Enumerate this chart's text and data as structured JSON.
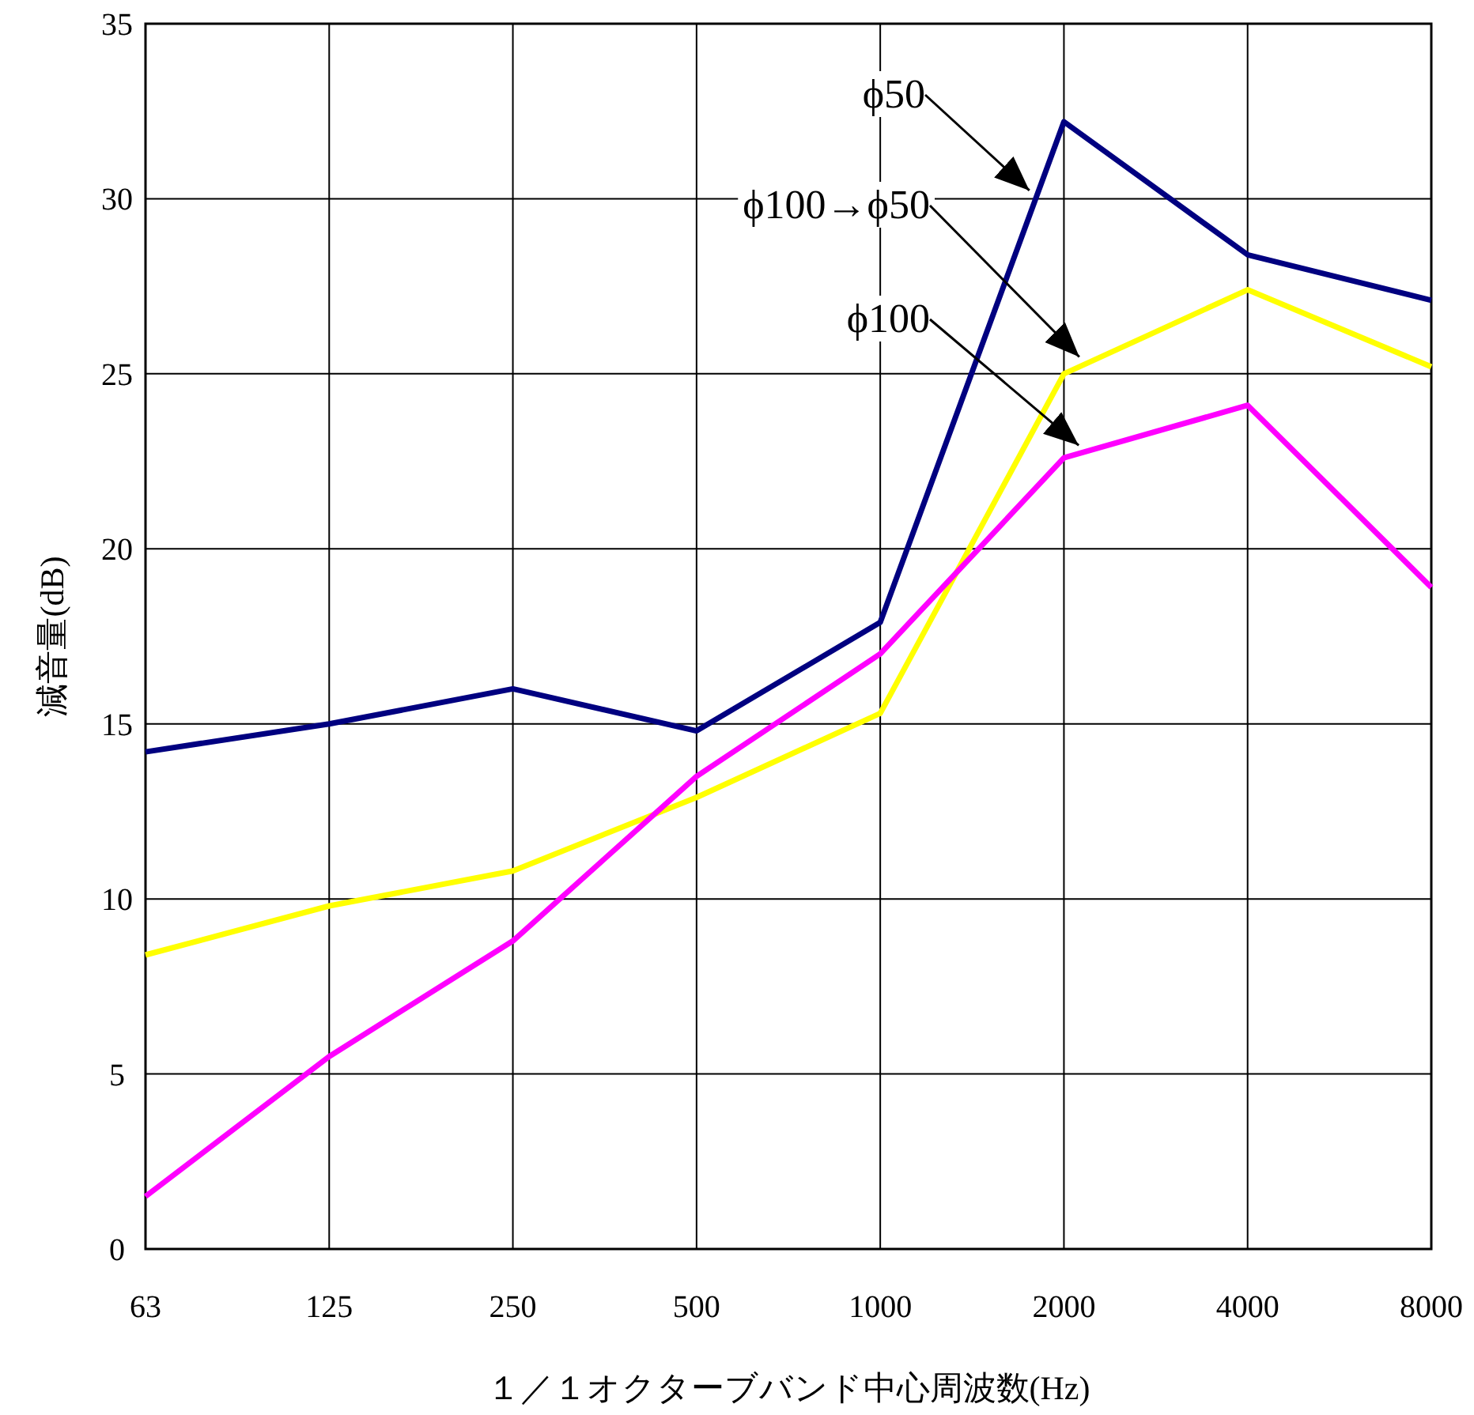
{
  "chart_data": {
    "type": "line",
    "xlabel": "１／１オクターブバンド中心周波数(Hz)",
    "ylabel": "減音量(dB)",
    "categories": [
      "63",
      "125",
      "250",
      "500",
      "1000",
      "2000",
      "4000",
      "8000"
    ],
    "ylim": [
      0,
      35
    ],
    "yticks": [
      0,
      5,
      10,
      15,
      20,
      25,
      30,
      35
    ],
    "grid": true,
    "marker": "none",
    "line_style": "solid",
    "series": [
      {
        "name": "ϕ50",
        "color": "#000080",
        "values": [
          14.2,
          15.0,
          16.0,
          14.8,
          17.9,
          32.2,
          28.4,
          27.1
        ]
      },
      {
        "name": "ϕ100→ϕ50",
        "color": "#ffff00",
        "values": [
          8.4,
          9.8,
          10.8,
          12.9,
          15.3,
          25.0,
          27.4,
          25.2
        ]
      },
      {
        "name": "ϕ100",
        "color": "#ff00ff",
        "values": [
          1.5,
          5.5,
          8.8,
          13.5,
          17.0,
          22.6,
          24.1,
          18.9
        ]
      }
    ]
  }
}
